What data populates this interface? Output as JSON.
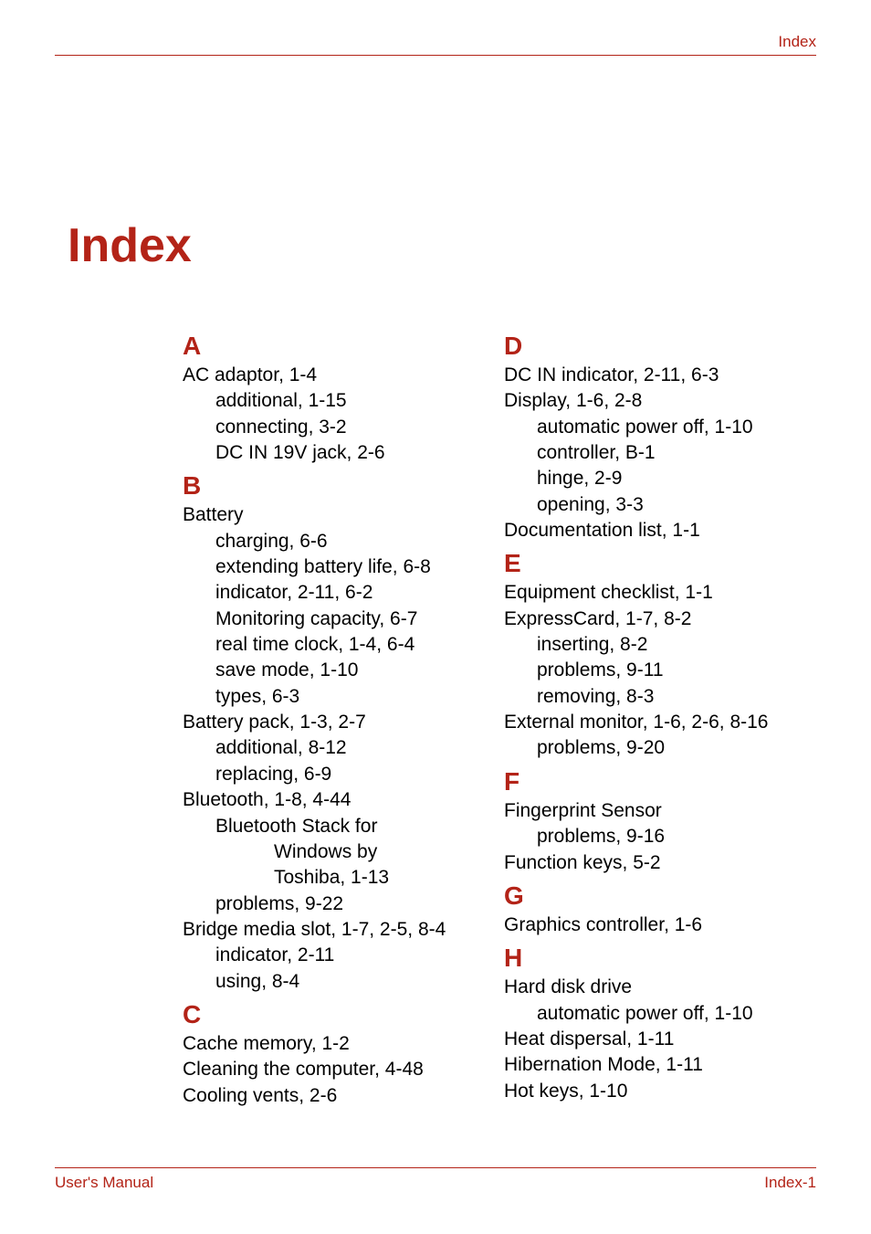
{
  "colors": {
    "accent": "#b32317",
    "text": "#000000",
    "background": "#ffffff"
  },
  "typography": {
    "base_font": "Arial, Helvetica, sans-serif",
    "title_size_pt": 40,
    "letter_size_pt": 21,
    "body_size_pt": 16,
    "footer_size_pt": 13
  },
  "header": {
    "right": "Index"
  },
  "title": "Index",
  "footer": {
    "left": "User's Manual",
    "right": "Index-1"
  },
  "left_column": [
    {
      "type": "letter",
      "text": "A"
    },
    {
      "type": "entry",
      "text": "AC adaptor, 1-4"
    },
    {
      "type": "sub",
      "text": "additional, 1-15"
    },
    {
      "type": "sub",
      "text": "connecting, 3-2"
    },
    {
      "type": "sub",
      "text": "DC IN 19V jack, 2-6"
    },
    {
      "type": "letter",
      "text": "B"
    },
    {
      "type": "entry",
      "text": "Battery"
    },
    {
      "type": "sub",
      "text": "charging, 6-6"
    },
    {
      "type": "sub",
      "text": "extending battery life, 6-8"
    },
    {
      "type": "sub",
      "text": "indicator, 2-11, 6-2"
    },
    {
      "type": "sub",
      "text": "Monitoring capacity, 6-7"
    },
    {
      "type": "sub",
      "text": "real time clock, 1-4, 6-4"
    },
    {
      "type": "sub",
      "text": "save mode, 1-10"
    },
    {
      "type": "sub",
      "text": "types, 6-3"
    },
    {
      "type": "entry",
      "text": "Battery pack, 1-3, 2-7"
    },
    {
      "type": "sub",
      "text": "additional, 8-12"
    },
    {
      "type": "sub",
      "text": "replacing, 6-9"
    },
    {
      "type": "entry",
      "text": "Bluetooth, 1-8, 4-44"
    },
    {
      "type": "sub",
      "text": "Bluetooth Stack for "
    },
    {
      "type": "subsub",
      "text": "Windows by "
    },
    {
      "type": "subsub",
      "text": "Toshiba, 1-13"
    },
    {
      "type": "sub",
      "text": "problems, 9-22"
    },
    {
      "type": "entry",
      "text": "Bridge media slot, 1-7, 2-5, 8-4"
    },
    {
      "type": "sub",
      "text": "indicator, 2-11"
    },
    {
      "type": "sub",
      "text": "using, 8-4"
    },
    {
      "type": "letter",
      "text": "C"
    },
    {
      "type": "entry",
      "text": "Cache memory, 1-2"
    },
    {
      "type": "entry",
      "text": "Cleaning the computer, 4-48"
    },
    {
      "type": "entry",
      "text": "Cooling vents, 2-6"
    }
  ],
  "right_column": [
    {
      "type": "letter",
      "text": "D"
    },
    {
      "type": "entry",
      "text": "DC IN indicator, 2-11, 6-3"
    },
    {
      "type": "entry",
      "text": "Display, 1-6, 2-8"
    },
    {
      "type": "sub",
      "text": "automatic power off, 1-10"
    },
    {
      "type": "sub",
      "text": "controller, B-1"
    },
    {
      "type": "sub",
      "text": "hinge, 2-9"
    },
    {
      "type": "sub",
      "text": "opening, 3-3"
    },
    {
      "type": "entry",
      "text": "Documentation list, 1-1"
    },
    {
      "type": "letter",
      "text": "E"
    },
    {
      "type": "entry",
      "text": "Equipment checklist, 1-1"
    },
    {
      "type": "entry",
      "text": "ExpressCard, 1-7, 8-2"
    },
    {
      "type": "sub",
      "text": "inserting, 8-2"
    },
    {
      "type": "sub",
      "text": "problems, 9-11"
    },
    {
      "type": "sub",
      "text": "removing, 8-3"
    },
    {
      "type": "entry",
      "text": "External monitor, 1-6, 2-6, 8-16"
    },
    {
      "type": "sub",
      "text": "problems, 9-20"
    },
    {
      "type": "letter",
      "text": "F"
    },
    {
      "type": "entry",
      "text": "Fingerprint Sensor"
    },
    {
      "type": "sub",
      "text": "problems, 9-16"
    },
    {
      "type": "entry",
      "text": "Function keys, 5-2"
    },
    {
      "type": "letter",
      "text": "G"
    },
    {
      "type": "entry",
      "text": "Graphics controller, 1-6"
    },
    {
      "type": "letter",
      "text": "H"
    },
    {
      "type": "entry",
      "text": "Hard disk drive"
    },
    {
      "type": "sub",
      "text": "automatic power off, 1-10"
    },
    {
      "type": "entry",
      "text": "Heat dispersal, 1-11"
    },
    {
      "type": "entry",
      "text": "Hibernation Mode, 1-11"
    },
    {
      "type": "entry",
      "text": "Hot keys, 1-10"
    }
  ]
}
